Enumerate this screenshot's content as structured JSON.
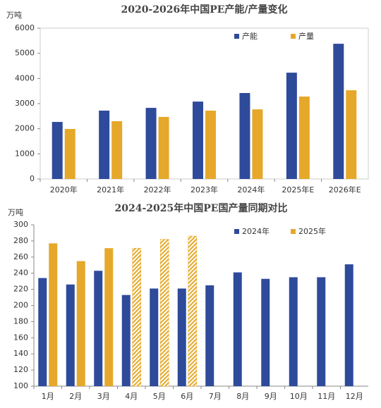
{
  "chart_data": [
    {
      "type": "bar",
      "title": "2020-2026年中国PE产能/产量变化",
      "y_unit": "万吨",
      "categories": [
        "2020年",
        "2021年",
        "2022年",
        "2023年",
        "2024年",
        "2025年E",
        "2026年E"
      ],
      "series": [
        {
          "name": "产能",
          "color": "#2e4a9a",
          "values": [
            2270,
            2720,
            2830,
            3080,
            3420,
            4230,
            5380
          ]
        },
        {
          "name": "产量",
          "color": "#e6a82a",
          "values": [
            1990,
            2300,
            2470,
            2720,
            2770,
            3280,
            3530
          ]
        }
      ],
      "ylim": [
        0,
        6000
      ],
      "yticks": [
        0,
        1000,
        2000,
        3000,
        4000,
        5000,
        6000
      ],
      "legend": "upper right"
    },
    {
      "type": "bar",
      "title": "2024-2025年中国PE国产量同期对比",
      "y_unit": "万吨",
      "categories": [
        "1月",
        "2月",
        "3月",
        "4月",
        "5月",
        "6月",
        "7月",
        "8月",
        "9月",
        "10月",
        "11月",
        "12月"
      ],
      "series": [
        {
          "name": "2024年",
          "color": "#2e4a9a",
          "values": [
            234,
            226,
            243,
            213,
            221,
            221,
            225,
            241,
            233,
            235,
            235,
            251
          ]
        },
        {
          "name": "2025年",
          "color": "#e6a82a",
          "values": [
            277,
            255,
            271,
            271,
            282,
            286,
            null,
            null,
            null,
            null,
            null,
            null
          ],
          "hatched": [
            false,
            false,
            false,
            true,
            true,
            true,
            false,
            false,
            false,
            false,
            false,
            false
          ]
        }
      ],
      "ylim": [
        100,
        300
      ],
      "yticks": [
        100,
        120,
        140,
        160,
        180,
        200,
        220,
        240,
        260,
        280,
        300
      ],
      "legend": "upper right"
    }
  ]
}
